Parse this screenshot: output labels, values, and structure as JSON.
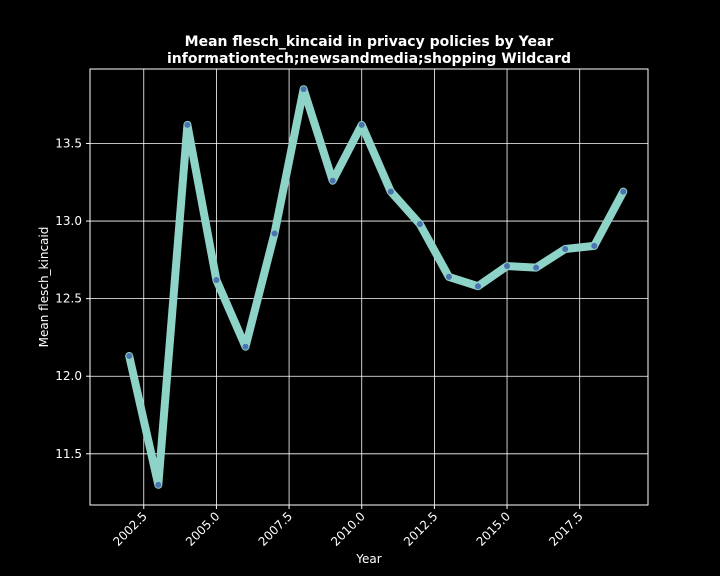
{
  "chart_data": {
    "type": "line",
    "title": "Mean flesch_kincaid in privacy policies by Year",
    "subtitle": "informationtech;newsandmedia;shopping Wildcard",
    "xlabel": "Year",
    "ylabel": "Mean flesch_kincaid",
    "xlim": [
      2000.65,
      2019.85
    ],
    "ylim": [
      11.17,
      13.98
    ],
    "xticks": [
      2002.5,
      2005.0,
      2007.5,
      2010.0,
      2012.5,
      2015.0,
      2017.5
    ],
    "xtick_labels": [
      "2002.5",
      "2005.0",
      "2007.5",
      "2010.0",
      "2012.5",
      "2015.0",
      "2017.5"
    ],
    "yticks": [
      11.5,
      12.0,
      12.5,
      13.0,
      13.5
    ],
    "ytick_labels": [
      "11.5",
      "12.0",
      "12.5",
      "13.0",
      "13.5"
    ],
    "grid": true,
    "line_color": "#8dd3c7",
    "marker_color": "#4c72b0",
    "background": "#000000",
    "series": [
      {
        "x": [
          2002,
          2003,
          2004,
          2005,
          2006,
          2007,
          2008,
          2009,
          2010,
          2011,
          2012,
          2013,
          2014,
          2015,
          2016,
          2017,
          2018,
          2019
        ],
        "values": [
          12.13,
          11.3,
          13.62,
          12.62,
          12.19,
          12.92,
          13.85,
          13.26,
          13.62,
          13.19,
          12.98,
          12.64,
          12.58,
          12.71,
          12.7,
          12.82,
          12.84,
          13.19
        ]
      }
    ]
  }
}
